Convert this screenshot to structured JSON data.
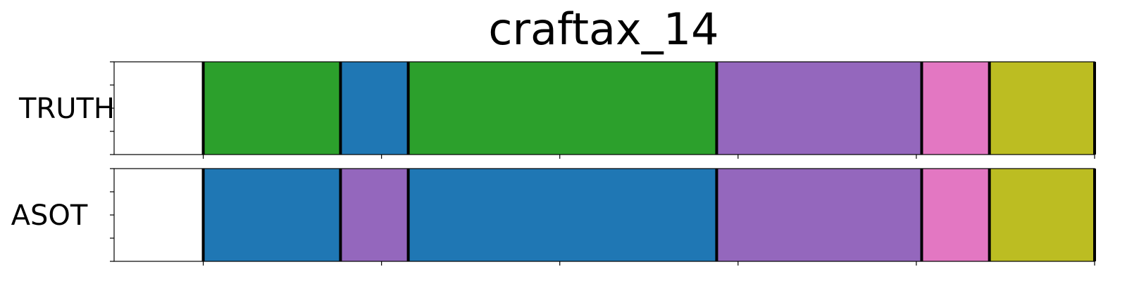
{
  "chart_data": {
    "type": "segmentation-timeline",
    "title": "craftax_14",
    "x_range": [
      -0.5,
      5.0
    ],
    "tick_values": [
      0,
      1,
      2,
      3,
      4,
      5
    ],
    "boundaries": [
      0.0,
      0.77,
      1.15,
      2.88,
      4.03,
      4.41,
      5.0
    ],
    "rows": [
      {
        "label": "TRUTH",
        "segments": [
          {
            "start": 0.0,
            "end": 0.77,
            "color": "#2ca02c"
          },
          {
            "start": 0.77,
            "end": 1.15,
            "color": "#1f77b4"
          },
          {
            "start": 1.15,
            "end": 2.88,
            "color": "#2ca02c"
          },
          {
            "start": 2.88,
            "end": 4.03,
            "color": "#9467bd"
          },
          {
            "start": 4.03,
            "end": 4.41,
            "color": "#e377c2"
          },
          {
            "start": 4.41,
            "end": 5.0,
            "color": "#bcbd22"
          }
        ]
      },
      {
        "label": "ASOT",
        "segments": [
          {
            "start": 0.0,
            "end": 0.77,
            "color": "#1f77b4"
          },
          {
            "start": 0.77,
            "end": 1.15,
            "color": "#9467bd"
          },
          {
            "start": 1.15,
            "end": 2.88,
            "color": "#1f77b4"
          },
          {
            "start": 2.88,
            "end": 4.03,
            "color": "#9467bd"
          },
          {
            "start": 4.03,
            "end": 4.41,
            "color": "#e377c2"
          },
          {
            "start": 4.41,
            "end": 5.0,
            "color": "#bcbd22"
          }
        ]
      }
    ]
  }
}
